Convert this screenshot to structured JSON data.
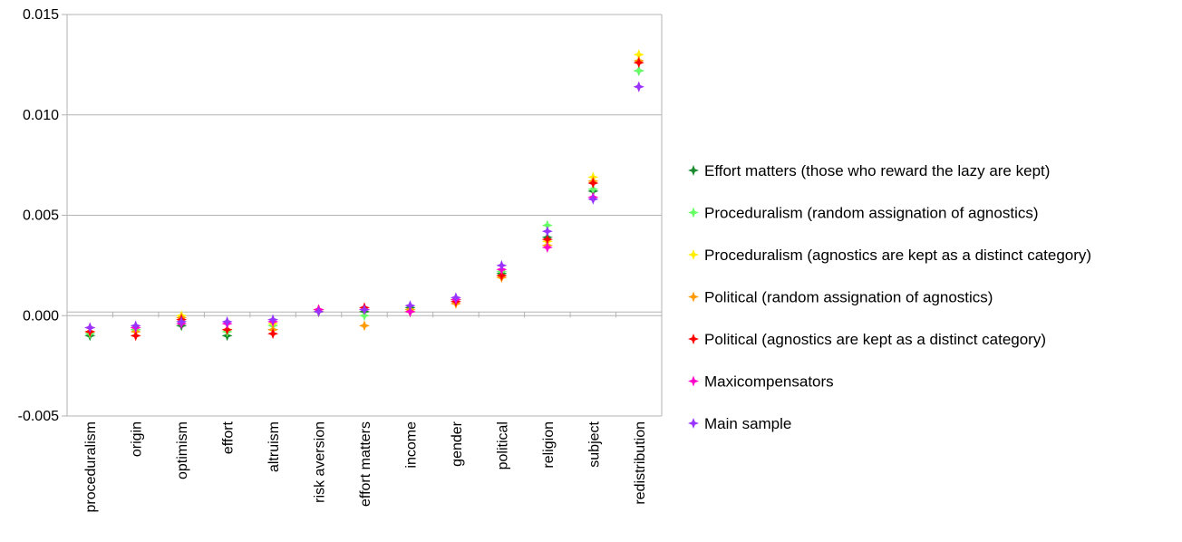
{
  "chart_data": {
    "type": "scatter",
    "title": "",
    "xlabel": "",
    "ylabel": "",
    "categories": [
      "proceduralism",
      "origin",
      "optimism",
      "effort",
      "altruism",
      "risk aversion",
      "effort matters",
      "income",
      "gender",
      "political",
      "religion",
      "subject",
      "redistribution"
    ],
    "ylim": [
      -0.005,
      0.015
    ],
    "yticks": [
      -0.005,
      0.0,
      0.005,
      0.01,
      0.015
    ],
    "ytick_labels": [
      "-0.005",
      "0.000",
      "0.005",
      "0.010",
      "0.015"
    ],
    "grid": true,
    "legend_position": "right",
    "series": [
      {
        "name": "Effort matters (those who reward the lazy are kept)",
        "color": "#1a8a2e",
        "values": [
          -0.001,
          -0.0007,
          -0.0005,
          -0.001,
          -0.0007,
          0.0002,
          0.0002,
          0.0004,
          0.0008,
          0.0021,
          0.0039,
          0.0062,
          0.0122
        ]
      },
      {
        "name": "Proceduralism (random assignation of agnostics)",
        "color": "#66ff66",
        "values": [
          -0.0009,
          -0.0007,
          -0.0003,
          -0.0008,
          -0.0005,
          0.0002,
          0.0,
          0.0002,
          0.0008,
          0.0022,
          0.0045,
          0.0063,
          0.0122
        ]
      },
      {
        "name": "Proceduralism (agnostics are kept as a distinct category)",
        "color": "#ffee00",
        "values": [
          -0.0008,
          -0.0006,
          0.0,
          -0.0007,
          -0.0004,
          0.0003,
          0.0003,
          0.0003,
          0.0008,
          0.002,
          0.0037,
          0.0069,
          0.013
        ]
      },
      {
        "name": "Political (random assignation of agnostics)",
        "color": "#ff9900",
        "values": [
          -0.0008,
          -0.0008,
          -0.0001,
          -0.0007,
          -0.0007,
          0.0002,
          -0.0005,
          0.0003,
          0.0006,
          0.0019,
          0.0035,
          0.0067,
          0.0127
        ]
      },
      {
        "name": "Political (agnostics are kept as a distinct category)",
        "color": "#ff0000",
        "values": [
          -0.0008,
          -0.001,
          -0.0002,
          -0.0007,
          -0.0009,
          0.0003,
          0.0004,
          0.0002,
          0.0007,
          0.002,
          0.0038,
          0.0066,
          0.0126
        ]
      },
      {
        "name": "Maxicompensators",
        "color": "#ff00cc",
        "values": [
          -0.0006,
          -0.0006,
          -0.0004,
          -0.0004,
          -0.0003,
          0.0003,
          0.0003,
          0.0002,
          0.0008,
          0.0023,
          0.0034,
          0.0059,
          0.0114
        ]
      },
      {
        "name": "Main sample",
        "color": "#9933ff",
        "values": [
          -0.0006,
          -0.0005,
          -0.0003,
          -0.0003,
          -0.0002,
          0.0002,
          0.0003,
          0.0005,
          0.0009,
          0.0025,
          0.0042,
          0.0058,
          0.0114
        ]
      }
    ]
  }
}
